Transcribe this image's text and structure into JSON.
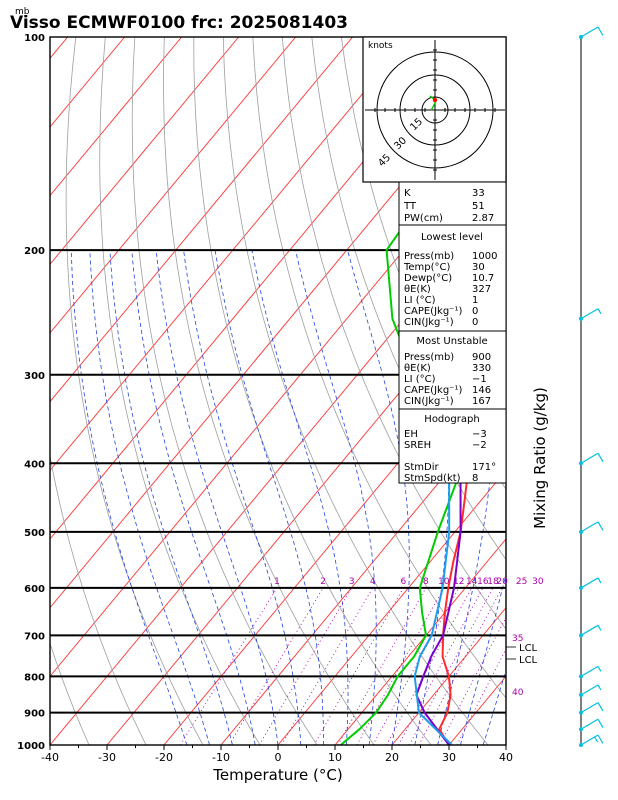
{
  "header": {
    "unit_mb": "mb",
    "title": "Visso ECMWF0100  frc: 2025081403"
  },
  "axes": {
    "xlabel": "Temperature (°C)",
    "ylabel": "Mixing Ratio (g/kg)",
    "x_ticks": [
      "-40",
      "-30",
      "-20",
      "-10",
      "0",
      "10",
      "20",
      "30",
      "40"
    ],
    "p_ticks": [
      "100",
      "200",
      "300",
      "400",
      "500",
      "600",
      "700",
      "800",
      "900",
      "1000"
    ]
  },
  "mixing_ratio_labels": [
    "1",
    "2",
    "3",
    "4",
    "6",
    "8",
    "10",
    "12",
    "14",
    "16",
    "18",
    "20",
    "25",
    "30"
  ],
  "side_labels": {
    "v35": "35",
    "v40": "40",
    "lcl1": "LCL",
    "lcl2": "LCL"
  },
  "hodograph": {
    "title": "knots",
    "ring_labels": [
      "15",
      "30",
      "45"
    ]
  },
  "indices": {
    "k_label": "K",
    "k": "33",
    "tt_label": "TT",
    "tt": "51",
    "pw_label": "PW(cm)",
    "pw": "2.87"
  },
  "lowest_level": {
    "heading": "Lowest level",
    "rows": [
      {
        "label": "Press(mb)",
        "value": "1000"
      },
      {
        "label": "Temp(°C)",
        "value": "30"
      },
      {
        "label": "Dewp(°C)",
        "value": "10.7"
      },
      {
        "label": "θE(K)",
        "value": "327"
      },
      {
        "label": "LI (°C)",
        "value": "1"
      },
      {
        "label": "CAPE(Jkg⁻¹)",
        "value": "0"
      },
      {
        "label": "CIN(Jkg⁻¹)",
        "value": "0"
      }
    ]
  },
  "most_unstable": {
    "heading": "Most Unstable",
    "rows": [
      {
        "label": "Press(mb)",
        "value": "900"
      },
      {
        "label": "θE(K)",
        "value": "330"
      },
      {
        "label": "LI (°C)",
        "value": "−1"
      },
      {
        "label": "CAPE(Jkg⁻¹)",
        "value": "146"
      },
      {
        "label": "CIN(Jkg⁻¹)",
        "value": "167"
      }
    ]
  },
  "hodo_table": {
    "heading": "Hodograph",
    "rows": [
      {
        "label": "EH",
        "value": "−3"
      },
      {
        "label": "SREH",
        "value": "−2"
      },
      {
        "label": "StmDir",
        "value": "171°"
      },
      {
        "label": "StmSpd(kt)",
        "value": "8"
      }
    ]
  },
  "chart_data": {
    "type": "line",
    "title": "Visso ECMWF0100  frc: 2025081403",
    "xlabel": "Temperature (°C)",
    "ylabel": "Mixing Ratio (g/kg)",
    "xlim": [
      -40,
      40
    ],
    "ylim": [
      1000,
      100
    ],
    "y_scale": "log-pressure (mb)",
    "colors": {
      "temperature": "#ff2a2a",
      "dewpoint": "#00cc00",
      "parcel": "#7a00cc",
      "virtual": "#1e9eea",
      "isotherm": "#ff3333",
      "dry_adiabat": "#9e9e9e",
      "moist_adiabat": "#2244dd",
      "mixing_ratio": "#aa00aa",
      "wind": "#00c0e0"
    },
    "series": [
      {
        "key": "temperature",
        "points": [
          [
            1000,
            30
          ],
          [
            950,
            26
          ],
          [
            900,
            25
          ],
          [
            850,
            23
          ],
          [
            800,
            20
          ],
          [
            750,
            16
          ],
          [
            700,
            13
          ],
          [
            650,
            10
          ],
          [
            600,
            7
          ],
          [
            550,
            4
          ],
          [
            500,
            1
          ],
          [
            450,
            -3
          ],
          [
            400,
            -7.5
          ],
          [
            350,
            -13
          ],
          [
            300,
            -20
          ],
          [
            250,
            -29
          ],
          [
            200,
            -36
          ],
          [
            150,
            -44
          ],
          [
            100,
            -60
          ]
        ]
      },
      {
        "key": "dewpoint",
        "points": [
          [
            1000,
            11
          ],
          [
            950,
            12
          ],
          [
            900,
            12.5
          ],
          [
            850,
            12
          ],
          [
            800,
            11
          ],
          [
            750,
            11
          ],
          [
            700,
            10
          ],
          [
            650,
            6
          ],
          [
            600,
            2
          ],
          [
            500,
            -3
          ],
          [
            400,
            -8.5
          ],
          [
            350,
            -18
          ],
          [
            300,
            -30
          ],
          [
            250,
            -42
          ],
          [
            200,
            -53
          ],
          [
            150,
            -55
          ],
          [
            100,
            -56
          ]
        ]
      },
      {
        "key": "parcel",
        "points": [
          [
            1000,
            30
          ],
          [
            900,
            21
          ],
          [
            850,
            17
          ],
          [
            800,
            15.5
          ],
          [
            750,
            14
          ],
          [
            700,
            13
          ],
          [
            600,
            8
          ],
          [
            500,
            1
          ],
          [
            400,
            -9
          ],
          [
            300,
            -23
          ],
          [
            200,
            -44
          ],
          [
            150,
            -60
          ],
          [
            110,
            -72
          ]
        ]
      },
      {
        "key": "virtual",
        "points": [
          [
            1000,
            30.5
          ],
          [
            900,
            20
          ],
          [
            800,
            14
          ],
          [
            750,
            12
          ],
          [
            700,
            11
          ],
          [
            600,
            6
          ],
          [
            500,
            -1
          ],
          [
            400,
            -11
          ],
          [
            300,
            -27
          ],
          [
            200,
            -48
          ],
          [
            150,
            -64
          ],
          [
            110,
            -77
          ]
        ]
      }
    ],
    "wind_barbs": [
      {
        "p": 1000,
        "kt": 15
      },
      {
        "p": 950,
        "kt": 10
      },
      {
        "p": 900,
        "kt": 10
      },
      {
        "p": 850,
        "kt": 5
      },
      {
        "p": 800,
        "kt": 5
      },
      {
        "p": 700,
        "kt": 5
      },
      {
        "p": 600,
        "kt": 5
      },
      {
        "p": 500,
        "kt": 10
      },
      {
        "p": 400,
        "kt": 10
      },
      {
        "p": 250,
        "kt": 5
      },
      {
        "p": 100,
        "kt": 10
      }
    ]
  }
}
